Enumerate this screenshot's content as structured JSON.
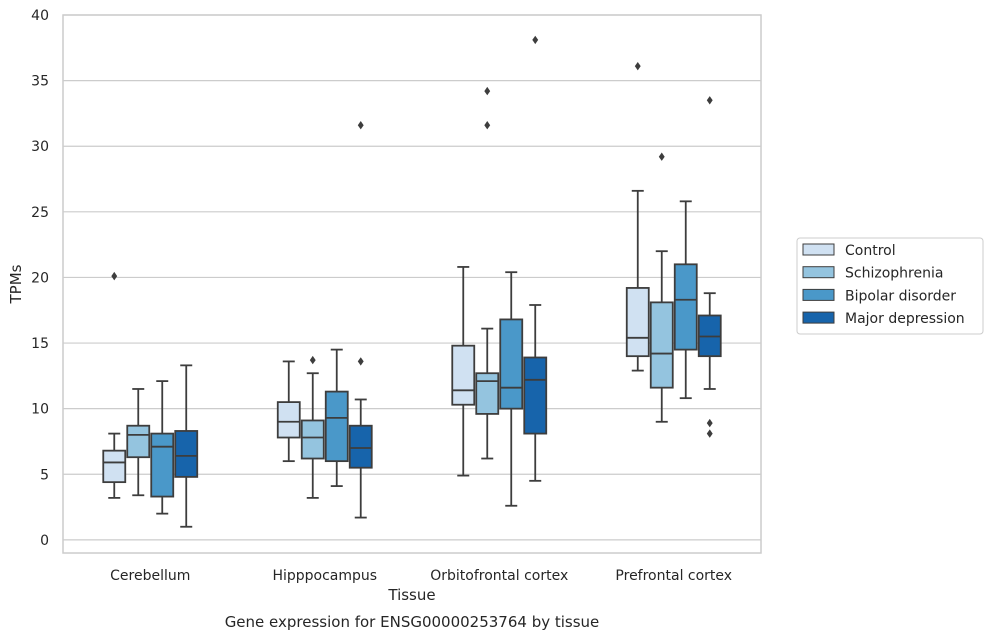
{
  "chart_data": {
    "type": "box",
    "title": "",
    "caption": "Gene expression for ENSG00000253764 by tissue",
    "xlabel": "Tissue",
    "ylabel": "TPMs",
    "ylim": [
      -1,
      40
    ],
    "yticks": [
      0,
      5,
      10,
      15,
      20,
      25,
      30,
      35,
      40
    ],
    "grid": "horizontal",
    "legend_position": "right",
    "categories": [
      "Cerebellum",
      "Hipppocampus",
      "Orbitofrontal cortex",
      "Prefrontal cortex"
    ],
    "series": [
      {
        "name": "Control",
        "color": "#d0e1f2",
        "boxes": [
          {
            "whisker_low": 3.2,
            "q1": 4.4,
            "median": 5.9,
            "q3": 6.8,
            "whisker_high": 8.1,
            "outliers": [
              20.1
            ]
          },
          {
            "whisker_low": 6.0,
            "q1": 7.8,
            "median": 9.0,
            "q3": 10.5,
            "whisker_high": 13.6,
            "outliers": []
          },
          {
            "whisker_low": 4.9,
            "q1": 10.3,
            "median": 11.4,
            "q3": 14.8,
            "whisker_high": 20.8,
            "outliers": []
          },
          {
            "whisker_low": 12.9,
            "q1": 14.0,
            "median": 15.4,
            "q3": 19.2,
            "whisker_high": 26.6,
            "outliers": [
              36.1
            ]
          }
        ]
      },
      {
        "name": "Schizophrenia",
        "color": "#94c4df",
        "boxes": [
          {
            "whisker_low": 3.4,
            "q1": 6.3,
            "median": 8.0,
            "q3": 8.7,
            "whisker_high": 11.5,
            "outliers": []
          },
          {
            "whisker_low": 3.2,
            "q1": 6.2,
            "median": 7.8,
            "q3": 9.1,
            "whisker_high": 12.7,
            "outliers": [
              13.7
            ]
          },
          {
            "whisker_low": 6.2,
            "q1": 9.6,
            "median": 12.1,
            "q3": 12.7,
            "whisker_high": 16.1,
            "outliers": [
              31.6,
              34.2
            ]
          },
          {
            "whisker_low": 9.0,
            "q1": 11.6,
            "median": 14.2,
            "q3": 18.1,
            "whisker_high": 22.0,
            "outliers": [
              29.2
            ]
          }
        ]
      },
      {
        "name": "Bipolar disorder",
        "color": "#4a98c9",
        "boxes": [
          {
            "whisker_low": 2.0,
            "q1": 3.3,
            "median": 7.1,
            "q3": 8.1,
            "whisker_high": 12.1,
            "outliers": []
          },
          {
            "whisker_low": 4.1,
            "q1": 6.0,
            "median": 9.3,
            "q3": 11.3,
            "whisker_high": 14.5,
            "outliers": []
          },
          {
            "whisker_low": 2.6,
            "q1": 10.0,
            "median": 11.6,
            "q3": 16.8,
            "whisker_high": 20.4,
            "outliers": []
          },
          {
            "whisker_low": 10.8,
            "q1": 14.5,
            "median": 18.3,
            "q3": 21.0,
            "whisker_high": 25.8,
            "outliers": []
          }
        ]
      },
      {
        "name": "Major depression",
        "color": "#1764ab",
        "boxes": [
          {
            "whisker_low": 1.0,
            "q1": 4.8,
            "median": 6.4,
            "q3": 8.3,
            "whisker_high": 13.3,
            "outliers": []
          },
          {
            "whisker_low": 1.7,
            "q1": 5.5,
            "median": 7.0,
            "q3": 8.7,
            "whisker_high": 10.7,
            "outliers": [
              13.6,
              31.6
            ]
          },
          {
            "whisker_low": 4.5,
            "q1": 8.1,
            "median": 12.2,
            "q3": 13.9,
            "whisker_high": 17.9,
            "outliers": [
              38.1
            ]
          },
          {
            "whisker_low": 11.5,
            "q1": 14.0,
            "median": 15.5,
            "q3": 17.1,
            "whisker_high": 18.8,
            "outliers": [
              8.1,
              8.9,
              33.5
            ]
          }
        ]
      }
    ]
  }
}
